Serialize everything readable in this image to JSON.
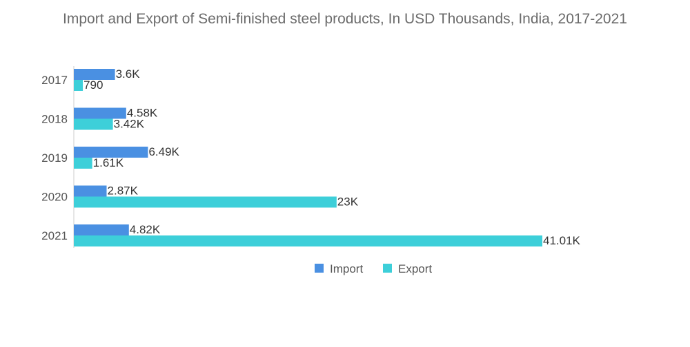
{
  "chart_data": {
    "type": "bar",
    "orientation": "horizontal",
    "title": "Import and Export of Semi-finished steel products, In USD Thousands, India, 2017-2021",
    "categories": [
      "2017",
      "2018",
      "2019",
      "2020",
      "2021"
    ],
    "series": [
      {
        "name": "Import",
        "color": "#4a90e2",
        "values": [
          3600,
          4580,
          6490,
          2870,
          4820
        ],
        "labels": [
          "3.6K",
          "4.58K",
          "6.49K",
          "2.87K",
          "4.82K"
        ]
      },
      {
        "name": "Export",
        "color": "#3dcfd9",
        "values": [
          790,
          3420,
          1610,
          23000,
          41010
        ],
        "labels": [
          "790",
          "3.42K",
          "1.61K",
          "23K",
          "41.01K"
        ]
      }
    ],
    "xlim": [
      0,
      41010
    ],
    "grid": false,
    "legend_position": "bottom"
  }
}
